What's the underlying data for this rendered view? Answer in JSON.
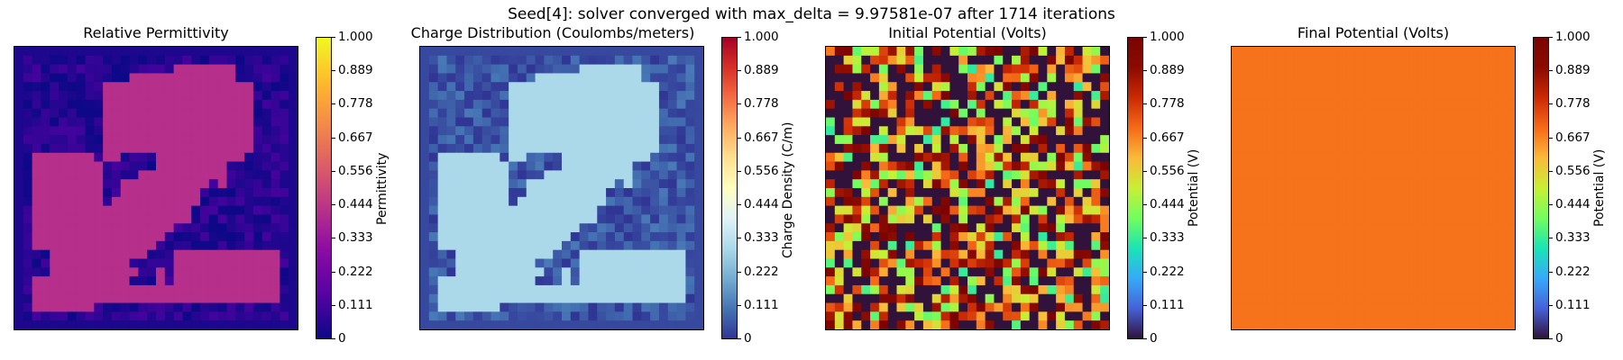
{
  "suptitle": "Seed[4]: solver converged with max_delta = 9.97581e-07 after 1714 iterations",
  "chart_data": [
    {
      "type": "heatmap",
      "title": "Relative Permittivity",
      "colorbar_label": "Permittivity",
      "colormap": "plasma",
      "grid_size": 32,
      "field": "pattern",
      "high_value": 0.42,
      "low_value": 0.05,
      "vmin": 0,
      "vmax": 1.0,
      "ticks": [
        "0",
        "0.111",
        "0.222",
        "0.333",
        "0.444",
        "0.556",
        "0.667",
        "0.778",
        "0.889",
        "1.000"
      ]
    },
    {
      "type": "heatmap",
      "title": "Charge Distribution (Coulombs/meters)",
      "colorbar_label": "Charge Density (C/m)",
      "colormap": "RdYlBu_r",
      "grid_size": 32,
      "field": "pattern",
      "high_value": 0.3,
      "low_value": 0.05,
      "vmin": 0,
      "vmax": 1.0,
      "ticks": [
        "0",
        "0.111",
        "0.222",
        "0.333",
        "0.444",
        "0.556",
        "0.667",
        "0.778",
        "0.889",
        "1.000"
      ]
    },
    {
      "type": "heatmap",
      "title": "Initial Potential (Volts)",
      "colorbar_label": "Potential (V)",
      "colormap": "turbo",
      "grid_size": 32,
      "field": "random",
      "vmin": 0,
      "vmax": 1.0,
      "ticks": [
        "0",
        "0.111",
        "0.222",
        "0.333",
        "0.444",
        "0.556",
        "0.667",
        "0.778",
        "0.889",
        "1.000"
      ]
    },
    {
      "type": "heatmap",
      "title": "Final Potential (Volts)",
      "colorbar_label": "Potential (V)",
      "colormap": "turbo",
      "grid_size": 32,
      "field": "uniform",
      "uniform_value": 0.69,
      "vmin": 0,
      "vmax": 1.0,
      "ticks": [
        "0",
        "0.111",
        "0.222",
        "0.333",
        "0.444",
        "0.556",
        "0.667",
        "0.778",
        "0.889",
        "1.000"
      ]
    }
  ]
}
